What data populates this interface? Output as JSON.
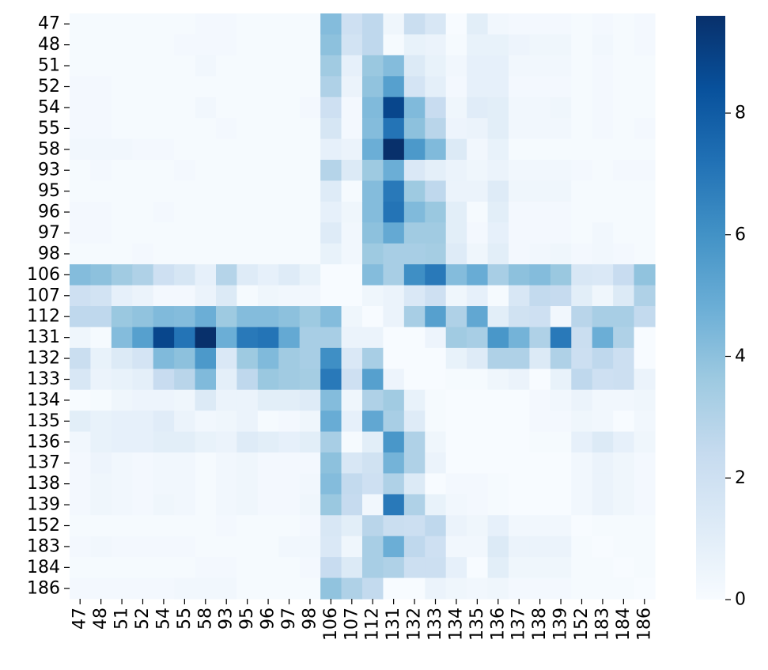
{
  "chart_data": {
    "type": "heatmap",
    "title": "",
    "xlabel": "",
    "ylabel": "",
    "labels": [
      "47",
      "48",
      "51",
      "52",
      "54",
      "55",
      "58",
      "93",
      "95",
      "96",
      "97",
      "98",
      "106",
      "107",
      "112",
      "131",
      "132",
      "133",
      "134",
      "135",
      "136",
      "137",
      "138",
      "139",
      "152",
      "183",
      "184",
      "186"
    ],
    "colorbar": {
      "min": 0,
      "max": 9.6,
      "ticks": [
        0,
        2,
        4,
        6,
        8
      ],
      "colormap": "Blues"
    },
    "colors": [
      "#f7fbff",
      "#deebf7",
      "#c6dbef",
      "#9ecae1",
      "#6baed6",
      "#4292c6",
      "#2171b5",
      "#08519c",
      "#08306b"
    ],
    "matrix": [
      [
        0.1,
        0.1,
        0.1,
        0.1,
        0.1,
        0.1,
        0.2,
        0.2,
        0.1,
        0.1,
        0.1,
        0.1,
        4.2,
        2.0,
        2.6,
        0.4,
        2.2,
        1.5,
        0.0,
        1.0,
        0.3,
        0.2,
        0.2,
        0.2,
        0.1,
        0.2,
        0.1,
        0.2
      ],
      [
        0.1,
        0.1,
        0.1,
        0.1,
        0.1,
        0.2,
        0.2,
        0.2,
        0.1,
        0.1,
        0.1,
        0.1,
        4.0,
        1.8,
        2.6,
        0.1,
        0.7,
        0.6,
        0.1,
        0.7,
        0.7,
        0.5,
        0.4,
        0.4,
        0.1,
        0.3,
        0.1,
        0.2
      ],
      [
        0.1,
        0.1,
        0.1,
        0.1,
        0.1,
        0.1,
        0.3,
        0.1,
        0.1,
        0.1,
        0.1,
        0.1,
        3.5,
        0.8,
        3.7,
        4.2,
        1.3,
        0.7,
        0.3,
        0.8,
        0.8,
        0.3,
        0.3,
        0.3,
        0.1,
        0.2,
        0.1,
        0.1
      ],
      [
        0.2,
        0.2,
        0.1,
        0.1,
        0.1,
        0.1,
        0.1,
        0.1,
        0.1,
        0.1,
        0.1,
        0.1,
        3.1,
        0.6,
        3.9,
        5.4,
        1.7,
        0.9,
        0.2,
        0.8,
        0.8,
        0.2,
        0.2,
        0.2,
        0.1,
        0.2,
        0.1,
        0.1
      ],
      [
        0.2,
        0.2,
        0.1,
        0.1,
        0.1,
        0.1,
        0.3,
        0.1,
        0.1,
        0.1,
        0.1,
        0.2,
        2.0,
        0.2,
        4.3,
        8.8,
        4.3,
        2.3,
        0.4,
        1.1,
        1.0,
        0.3,
        0.3,
        0.4,
        0.1,
        0.2,
        0.1,
        0.1
      ],
      [
        0.2,
        0.2,
        0.1,
        0.1,
        0.1,
        0.1,
        0.1,
        0.2,
        0.1,
        0.1,
        0.1,
        0.1,
        1.6,
        0.2,
        4.2,
        7.1,
        4.0,
        2.8,
        0.5,
        0.6,
        1.0,
        0.3,
        0.3,
        0.3,
        0.1,
        0.2,
        0.1,
        0.2
      ],
      [
        0.3,
        0.3,
        0.3,
        0.2,
        0.2,
        0.1,
        0.1,
        0.1,
        0.1,
        0.1,
        0.1,
        0.1,
        0.8,
        0.6,
        4.8,
        9.6,
        5.7,
        4.3,
        1.3,
        0.3,
        0.7,
        0.1,
        0.1,
        0.1,
        0.1,
        0.1,
        0.1,
        0.1
      ],
      [
        0.1,
        0.2,
        0.1,
        0.1,
        0.1,
        0.2,
        0.1,
        0.1,
        0.1,
        0.1,
        0.1,
        0.1,
        2.9,
        1.3,
        3.6,
        4.8,
        1.4,
        0.9,
        0.6,
        0.4,
        0.6,
        0.3,
        0.3,
        0.3,
        0.2,
        0.1,
        0.2,
        0.2
      ],
      [
        0.1,
        0.1,
        0.1,
        0.1,
        0.1,
        0.1,
        0.1,
        0.1,
        0.1,
        0.1,
        0.1,
        0.1,
        1.2,
        0.1,
        4.2,
        6.9,
        3.6,
        2.6,
        0.6,
        0.6,
        1.2,
        0.4,
        0.4,
        0.4,
        0.1,
        0.1,
        0.1,
        0.1
      ],
      [
        0.2,
        0.2,
        0.1,
        0.1,
        0.2,
        0.1,
        0.1,
        0.1,
        0.1,
        0.1,
        0.1,
        0.1,
        0.8,
        0.4,
        4.2,
        7.1,
        4.3,
        3.7,
        1.0,
        0.1,
        1.0,
        0.2,
        0.2,
        0.2,
        0.1,
        0.1,
        0.1,
        0.1
      ],
      [
        0.2,
        0.2,
        0.1,
        0.1,
        0.1,
        0.1,
        0.1,
        0.1,
        0.1,
        0.1,
        0.1,
        0.1,
        1.2,
        0.3,
        4.0,
        5.0,
        3.5,
        3.5,
        1.0,
        0.2,
        0.8,
        0.2,
        0.2,
        0.2,
        0.1,
        0.3,
        0.1,
        0.1
      ],
      [
        0.1,
        0.1,
        0.1,
        0.2,
        0.1,
        0.1,
        0.1,
        0.1,
        0.1,
        0.1,
        0.1,
        0.1,
        0.7,
        0.3,
        3.6,
        3.3,
        3.3,
        3.4,
        1.2,
        0.4,
        1.0,
        0.2,
        0.3,
        0.4,
        0.2,
        0.3,
        0.2,
        0.1
      ],
      [
        4.2,
        4.0,
        3.5,
        3.1,
        2.0,
        1.6,
        0.8,
        2.9,
        1.2,
        0.8,
        1.2,
        0.7,
        0.0,
        0.0,
        4.2,
        3.3,
        6.1,
        6.9,
        4.2,
        4.9,
        3.3,
        4.0,
        4.2,
        3.7,
        1.5,
        1.4,
        2.3,
        3.9
      ],
      [
        2.0,
        1.8,
        0.8,
        0.6,
        0.2,
        0.2,
        0.6,
        1.3,
        0.1,
        0.4,
        0.3,
        0.3,
        0.0,
        0.0,
        0.4,
        0.6,
        1.4,
        2.0,
        0.4,
        0.8,
        0.1,
        1.5,
        2.5,
        2.4,
        1.0,
        0.4,
        1.3,
        3.1
      ],
      [
        2.6,
        2.6,
        3.7,
        3.9,
        4.3,
        4.2,
        4.8,
        3.6,
        4.2,
        4.2,
        4.0,
        3.6,
        4.2,
        0.4,
        0.0,
        0.6,
        3.3,
        5.4,
        3.1,
        5.1,
        1.0,
        1.9,
        2.0,
        0.3,
        2.8,
        3.3,
        3.3,
        2.5
      ],
      [
        0.4,
        0.1,
        4.2,
        5.4,
        8.8,
        7.1,
        9.6,
        4.8,
        6.9,
        7.1,
        5.0,
        3.3,
        3.3,
        0.6,
        0.6,
        0.0,
        0.0,
        0.5,
        3.5,
        3.3,
        5.8,
        4.6,
        3.1,
        6.9,
        2.2,
        4.8,
        3.1,
        0.0
      ],
      [
        2.2,
        0.7,
        1.3,
        1.7,
        4.3,
        4.0,
        5.7,
        1.4,
        3.6,
        4.3,
        3.5,
        3.3,
        6.1,
        1.4,
        3.3,
        0.0,
        0.0,
        0.0,
        0.7,
        1.2,
        3.1,
        3.1,
        1.3,
        3.1,
        2.1,
        2.6,
        2.1,
        0.0
      ],
      [
        1.5,
        0.6,
        0.7,
        0.9,
        2.3,
        2.8,
        4.3,
        0.9,
        2.6,
        3.7,
        3.5,
        3.4,
        6.9,
        2.0,
        5.4,
        0.5,
        0.0,
        0.0,
        0.1,
        0.1,
        0.4,
        0.6,
        0.0,
        0.7,
        2.6,
        2.0,
        2.1,
        0.6
      ],
      [
        0.0,
        0.1,
        0.4,
        0.5,
        0.5,
        0.4,
        1.3,
        0.6,
        0.6,
        1.0,
        1.0,
        1.2,
        4.2,
        0.4,
        3.1,
        3.5,
        0.7,
        0.1,
        0.0,
        0.0,
        0.0,
        0.0,
        0.2,
        0.3,
        0.6,
        0.3,
        0.3,
        0.4
      ],
      [
        1.0,
        0.7,
        0.8,
        0.8,
        1.1,
        0.6,
        0.3,
        0.4,
        0.6,
        0.1,
        0.2,
        0.4,
        4.9,
        0.8,
        5.1,
        3.3,
        1.2,
        0.1,
        0.0,
        0.0,
        0.0,
        0.0,
        0.2,
        0.2,
        0.4,
        0.3,
        0.0,
        0.3
      ],
      [
        0.3,
        0.7,
        0.8,
        0.8,
        1.0,
        1.0,
        0.7,
        0.6,
        1.2,
        1.0,
        0.8,
        1.0,
        3.3,
        0.1,
        1.0,
        5.8,
        3.1,
        0.4,
        0.0,
        0.0,
        0.0,
        0.0,
        0.1,
        0.1,
        0.8,
        1.3,
        0.8,
        0.4
      ],
      [
        0.2,
        0.5,
        0.3,
        0.2,
        0.3,
        0.3,
        0.1,
        0.3,
        0.4,
        0.2,
        0.2,
        0.2,
        4.0,
        1.5,
        1.9,
        4.6,
        3.1,
        0.6,
        0.0,
        0.0,
        0.0,
        0.0,
        0.0,
        0.0,
        0.3,
        0.6,
        0.4,
        0.2
      ],
      [
        0.2,
        0.4,
        0.3,
        0.2,
        0.3,
        0.3,
        0.1,
        0.3,
        0.4,
        0.2,
        0.2,
        0.3,
        4.2,
        2.5,
        2.0,
        3.1,
        1.3,
        0.0,
        0.2,
        0.2,
        0.1,
        0.0,
        0.0,
        0.0,
        0.3,
        0.6,
        0.4,
        0.2
      ],
      [
        0.2,
        0.4,
        0.3,
        0.2,
        0.4,
        0.3,
        0.1,
        0.3,
        0.4,
        0.2,
        0.2,
        0.4,
        3.7,
        2.4,
        0.3,
        6.9,
        3.1,
        0.7,
        0.3,
        0.2,
        0.1,
        0.0,
        0.0,
        0.0,
        0.3,
        0.6,
        0.4,
        0.2
      ],
      [
        0.1,
        0.1,
        0.1,
        0.1,
        0.1,
        0.1,
        0.1,
        0.2,
        0.1,
        0.1,
        0.1,
        0.2,
        1.5,
        1.0,
        2.8,
        2.2,
        2.1,
        2.6,
        0.6,
        0.4,
        0.8,
        0.3,
        0.3,
        0.3,
        0.0,
        0.1,
        0.1,
        0.1
      ],
      [
        0.2,
        0.3,
        0.2,
        0.2,
        0.2,
        0.2,
        0.1,
        0.1,
        0.1,
        0.1,
        0.3,
        0.3,
        1.4,
        0.4,
        3.3,
        4.8,
        2.6,
        2.0,
        0.3,
        0.3,
        1.3,
        0.6,
        0.6,
        0.6,
        0.1,
        0.0,
        0.1,
        0.1
      ],
      [
        0.1,
        0.1,
        0.1,
        0.1,
        0.1,
        0.1,
        0.2,
        0.2,
        0.1,
        0.1,
        0.1,
        0.2,
        2.3,
        1.3,
        3.3,
        3.1,
        2.1,
        2.1,
        0.8,
        0.0,
        1.0,
        0.4,
        0.4,
        0.4,
        0.1,
        0.1,
        0.0,
        0.1
      ],
      [
        0.2,
        0.2,
        0.2,
        0.2,
        0.2,
        0.3,
        0.3,
        0.3,
        0.1,
        0.1,
        0.1,
        0.1,
        3.9,
        3.1,
        2.5,
        0.0,
        0.0,
        0.6,
        0.4,
        0.3,
        0.4,
        0.2,
        0.2,
        0.2,
        0.1,
        0.1,
        0.1,
        0.0
      ]
    ]
  }
}
